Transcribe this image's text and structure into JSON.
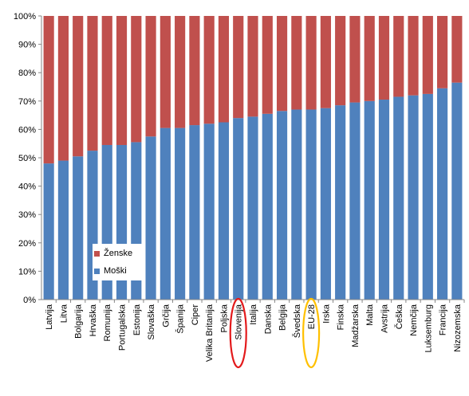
{
  "chart_data": {
    "type": "bar",
    "stacked": true,
    "categories": [
      "Latvija",
      "Litva",
      "Bolgarija",
      "Hrvaška",
      "Romunija",
      "Portugalska",
      "Estonija",
      "Slovaška",
      "Grčija",
      "Španija",
      "Ciper",
      "Velika Britanija",
      "Poljska",
      "Slovenija",
      "Italija",
      "Danska",
      "Belgija",
      "Švedska",
      "EU-28",
      "Irska",
      "Finska",
      "Madžarska",
      "Malta",
      "Avstrija",
      "Češka",
      "Nemčija",
      "Luksemburg",
      "Francija",
      "Nizozemska"
    ],
    "series": [
      {
        "name": "Moški",
        "color": "#4F81BD",
        "values": [
          48,
          49,
          50.5,
          52.5,
          54.5,
          54.5,
          55.5,
          57.5,
          60.5,
          60.5,
          61.5,
          62,
          62.5,
          64,
          64.5,
          65.5,
          66.5,
          67,
          67,
          67.5,
          68.5,
          69.5,
          70,
          70.5,
          71.5,
          72,
          72.5,
          74.5,
          76.5
        ]
      },
      {
        "name": "Ženske",
        "color": "#C0504D",
        "values": [
          52,
          51,
          49.5,
          47.5,
          45.5,
          45.5,
          44.5,
          42.5,
          39.5,
          39.5,
          38.5,
          38,
          37.5,
          36,
          35.5,
          34.5,
          33.5,
          33,
          33,
          32.5,
          31.5,
          30.5,
          30,
          29.5,
          28.5,
          28,
          27.5,
          25.5,
          23.5
        ]
      }
    ],
    "ylim": [
      0,
      100
    ],
    "yticks": [
      "0%",
      "10%",
      "20%",
      "30%",
      "40%",
      "50%",
      "60%",
      "70%",
      "80%",
      "90%",
      "100%"
    ],
    "grid": false,
    "legend_position": "bottom-left inside",
    "highlights": [
      {
        "category": "Slovenija",
        "color": "#E31A1C"
      },
      {
        "category": "EU-28",
        "color": "#FFC000"
      }
    ]
  }
}
